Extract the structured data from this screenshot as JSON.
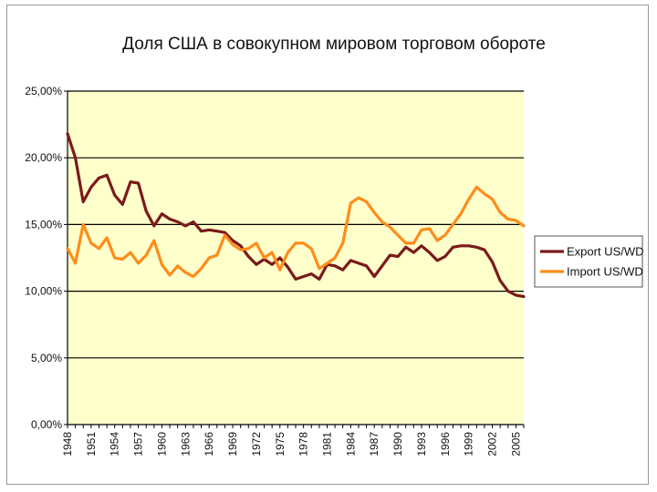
{
  "chart_data": {
    "type": "line",
    "title": "Доля США в совокупном мировом торговом обороте",
    "xlabel": "",
    "ylabel": "",
    "ylim": [
      0,
      25
    ],
    "y_ticks": [
      "0,00%",
      "5,00%",
      "10,00%",
      "15,00%",
      "20,00%",
      "25,00%"
    ],
    "x_tick_labels": [
      "1948",
      "1951",
      "1954",
      "1957",
      "1960",
      "1963",
      "1966",
      "1969",
      "1972",
      "1975",
      "1978",
      "1981",
      "1984",
      "1987",
      "1990",
      "1993",
      "1996",
      "1999",
      "2002",
      "2005"
    ],
    "grid": true,
    "legend_position": "right",
    "plot_background": "#ffffcc",
    "x": [
      1948,
      1949,
      1950,
      1951,
      1952,
      1953,
      1954,
      1955,
      1956,
      1957,
      1958,
      1959,
      1960,
      1961,
      1962,
      1963,
      1964,
      1965,
      1966,
      1967,
      1968,
      1969,
      1970,
      1971,
      1972,
      1973,
      1974,
      1975,
      1976,
      1977,
      1978,
      1979,
      1980,
      1981,
      1982,
      1983,
      1984,
      1985,
      1986,
      1987,
      1988,
      1989,
      1990,
      1991,
      1992,
      1993,
      1994,
      1995,
      1996,
      1997,
      1998,
      1999,
      2000,
      2001,
      2002,
      2003,
      2004,
      2005,
      2006
    ],
    "series": [
      {
        "name": "Export US/WD",
        "color": "#7a1a1a",
        "values": [
          21.8,
          20.0,
          16.7,
          17.8,
          18.5,
          18.7,
          17.2,
          16.5,
          18.2,
          18.1,
          16.0,
          14.9,
          15.8,
          15.4,
          15.2,
          14.9,
          15.2,
          14.5,
          14.6,
          14.5,
          14.4,
          13.8,
          13.4,
          12.6,
          12.0,
          12.4,
          12.0,
          12.5,
          11.8,
          10.9,
          11.1,
          11.3,
          10.9,
          12.0,
          11.9,
          11.6,
          12.3,
          12.1,
          11.9,
          11.1,
          11.9,
          12.7,
          12.6,
          13.3,
          12.9,
          13.4,
          12.9,
          12.3,
          12.6,
          13.3,
          13.4,
          13.4,
          13.3,
          13.1,
          12.2,
          10.8,
          10.0,
          9.7,
          9.6
        ]
      },
      {
        "name": "Import US/WD",
        "color": "#ff8c1a",
        "values": [
          13.2,
          12.1,
          15.0,
          13.6,
          13.2,
          14.0,
          12.5,
          12.4,
          12.9,
          12.1,
          12.7,
          13.8,
          12.0,
          11.2,
          11.9,
          11.4,
          11.1,
          11.7,
          12.5,
          12.7,
          14.2,
          13.5,
          13.1,
          13.2,
          13.6,
          12.5,
          12.9,
          11.6,
          12.9,
          13.6,
          13.6,
          13.2,
          11.7,
          12.1,
          12.5,
          13.6,
          16.6,
          17.0,
          16.7,
          15.9,
          15.2,
          14.8,
          14.2,
          13.6,
          13.6,
          14.6,
          14.7,
          13.8,
          14.2,
          15.0,
          15.8,
          16.9,
          17.8,
          17.3,
          16.9,
          15.9,
          15.4,
          15.3,
          14.9
        ]
      }
    ]
  }
}
